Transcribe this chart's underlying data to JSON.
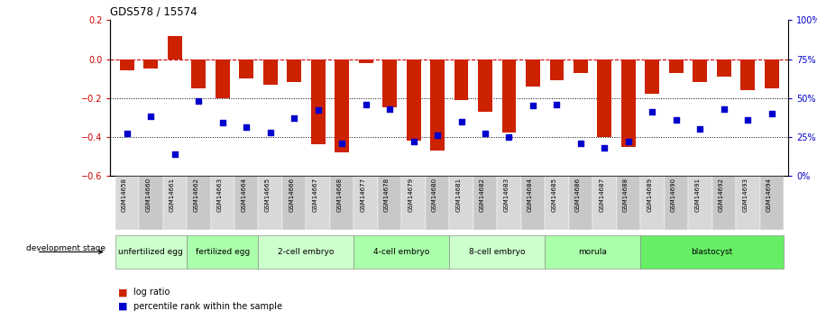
{
  "title": "GDS578 / 15574",
  "samples": [
    "GSM14658",
    "GSM14660",
    "GSM14661",
    "GSM14662",
    "GSM14663",
    "GSM14664",
    "GSM14665",
    "GSM14666",
    "GSM14667",
    "GSM14668",
    "GSM14677",
    "GSM14678",
    "GSM14679",
    "GSM14680",
    "GSM14681",
    "GSM14682",
    "GSM14683",
    "GSM14684",
    "GSM14685",
    "GSM14686",
    "GSM14687",
    "GSM14688",
    "GSM14689",
    "GSM14690",
    "GSM14691",
    "GSM14692",
    "GSM14693",
    "GSM14694"
  ],
  "log_ratio": [
    -0.06,
    -0.05,
    0.12,
    -0.15,
    -0.2,
    -0.1,
    -0.13,
    -0.12,
    -0.44,
    -0.48,
    -0.02,
    -0.25,
    -0.42,
    -0.47,
    -0.21,
    -0.27,
    -0.38,
    -0.14,
    -0.11,
    -0.07,
    -0.4,
    -0.45,
    -0.18,
    -0.07,
    -0.12,
    -0.09,
    -0.16,
    -0.15
  ],
  "percentile": [
    27,
    38,
    14,
    48,
    34,
    31,
    28,
    37,
    42,
    21,
    46,
    43,
    22,
    26,
    35,
    27,
    25,
    45,
    46,
    21,
    18,
    22,
    41,
    36,
    30,
    43,
    36,
    40
  ],
  "stages": [
    {
      "label": "unfertilized egg",
      "start": 0,
      "end": 3
    },
    {
      "label": "fertilized egg",
      "start": 3,
      "end": 6
    },
    {
      "label": "2-cell embryo",
      "start": 6,
      "end": 10
    },
    {
      "label": "4-cell embryo",
      "start": 10,
      "end": 14
    },
    {
      "label": "8-cell embryo",
      "start": 14,
      "end": 18
    },
    {
      "label": "morula",
      "start": 18,
      "end": 22
    },
    {
      "label": "blastocyst",
      "start": 22,
      "end": 28
    }
  ],
  "stage_colors": [
    "#ccffcc",
    "#aaffaa",
    "#ccffcc",
    "#aaffaa",
    "#ccffcc",
    "#aaffaa",
    "#66ee66"
  ],
  "ylim_left": [
    -0.6,
    0.2
  ],
  "ylim_right": [
    0,
    100
  ],
  "yticks_left": [
    -0.6,
    -0.4,
    -0.2,
    0.0,
    0.2
  ],
  "yticks_right": [
    0,
    25,
    50,
    75,
    100
  ],
  "ytick_labels_right": [
    "0%",
    "25%",
    "50%",
    "75%",
    "100%"
  ],
  "bar_color": "#cc2200",
  "dot_color": "#0000cc",
  "hline_color": "#cc0000",
  "left_label_color": "#cc0000",
  "right_label_color": "#0000cc"
}
